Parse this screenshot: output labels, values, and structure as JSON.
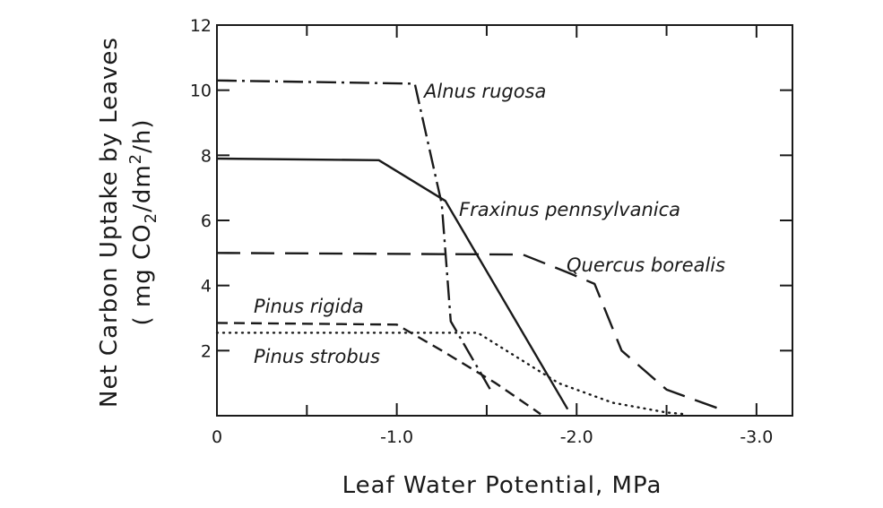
{
  "chart_data": {
    "type": "line",
    "xlabel": "Leaf Water Potential, MPa",
    "ylabel_line1": "Net Carbon Uptake by Leaves",
    "ylabel_line2_parts": [
      "( mg CO",
      "2",
      "/dm",
      "2",
      "/h)"
    ],
    "xlim": [
      0,
      -3.2
    ],
    "ylim": [
      0,
      12
    ],
    "x_ticks": [
      0,
      -1.0,
      -2.0,
      -3.0
    ],
    "x_tick_labels": [
      "0",
      "-1.0",
      "-2.0",
      "-3.0"
    ],
    "y_ticks": [
      2,
      4,
      6,
      8,
      10,
      12
    ],
    "y_tick_labels": [
      "2",
      "4",
      "6",
      "8",
      "10",
      "12"
    ],
    "grid": false,
    "legend": "inline labels",
    "series": [
      {
        "name": "Alnus rugosa",
        "style": "dash-dot",
        "x": [
          0,
          -1.1,
          -1.25,
          -1.3,
          -1.52
        ],
        "y": [
          10.3,
          10.2,
          6.5,
          2.9,
          0.8
        ]
      },
      {
        "name": "Fraxinus pennsylvanica",
        "style": "solid",
        "x": [
          0,
          -0.9,
          -1.27,
          -1.95
        ],
        "y": [
          7.9,
          7.85,
          6.6,
          0.2
        ]
      },
      {
        "name": "Quercus borealis",
        "style": "long-dash",
        "x": [
          0,
          -1.7,
          -1.95,
          -2.1,
          -2.25,
          -2.5,
          -2.8
        ],
        "y": [
          5.0,
          4.95,
          4.4,
          4.05,
          2.0,
          0.8,
          0.2
        ]
      },
      {
        "name": "Pinus rigida",
        "style": "dashed",
        "x": [
          0,
          -1.0,
          -1.25,
          -1.55,
          -1.8
        ],
        "y": [
          2.85,
          2.8,
          2.0,
          1.0,
          0.05
        ]
      },
      {
        "name": "Pinus strobus",
        "style": "dotted",
        "x": [
          0,
          -1.45,
          -1.9,
          -2.2,
          -2.5,
          -2.6
        ],
        "y": [
          2.55,
          2.55,
          1.0,
          0.4,
          0.1,
          0.05
        ]
      }
    ]
  }
}
